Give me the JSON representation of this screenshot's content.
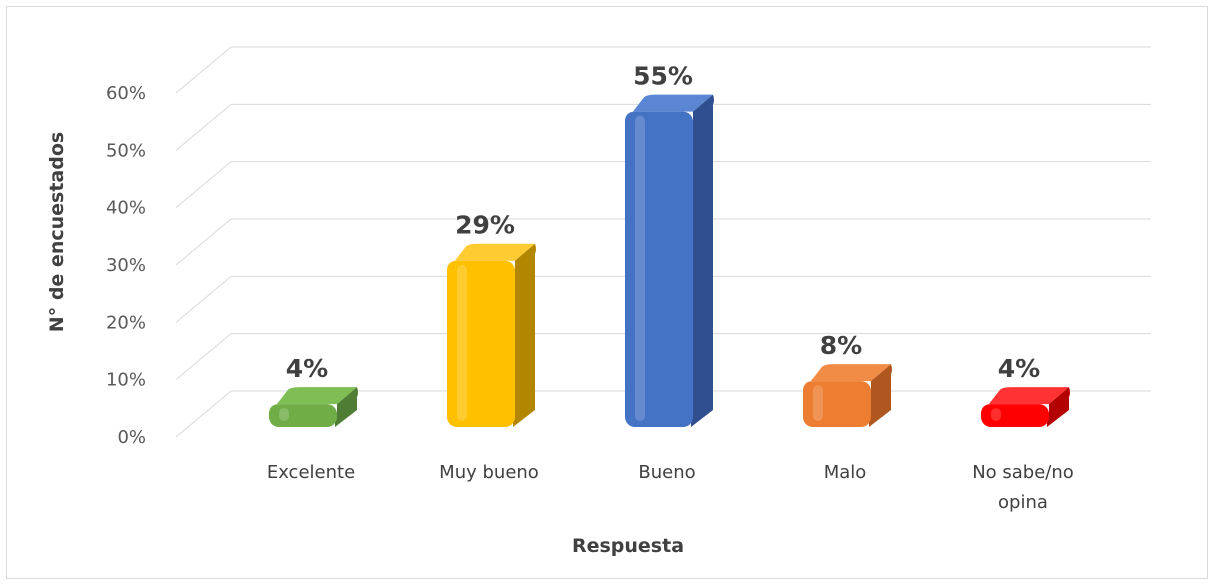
{
  "chart_data": {
    "type": "bar",
    "style": "3d-cylinder-bar",
    "title": "",
    "xlabel": "Respuesta",
    "ylabel": "N° de encuestados",
    "categories": [
      "Excelente",
      "Muy bueno",
      "Bueno",
      "Malo",
      "No sabe/no opina"
    ],
    "category_lines": [
      [
        "Excelente"
      ],
      [
        "Muy bueno"
      ],
      [
        "Bueno"
      ],
      [
        "Malo"
      ],
      [
        "No sabe/no",
        "opina"
      ]
    ],
    "values": [
      4,
      29,
      55,
      8,
      4
    ],
    "data_labels": [
      "4%",
      "29%",
      "55%",
      "8%",
      "4%"
    ],
    "colors": [
      "#70ad47",
      "#ffc000",
      "#4472c4",
      "#ed7d31",
      "#ff0000"
    ],
    "side_colors": [
      "#4f7d33",
      "#b38600",
      "#2f4f8f",
      "#b0561f",
      "#b30000"
    ],
    "top_colors": [
      "#7fbd55",
      "#ffcb33",
      "#5b86d4",
      "#f08c45",
      "#ff3333"
    ],
    "ylim": [
      0,
      60
    ],
    "yticks": [
      0,
      10,
      20,
      30,
      40,
      50,
      60
    ],
    "ytick_labels": [
      "0%",
      "10%",
      "20%",
      "30%",
      "40%",
      "50%",
      "60%"
    ],
    "grid": true,
    "legend": "none"
  }
}
